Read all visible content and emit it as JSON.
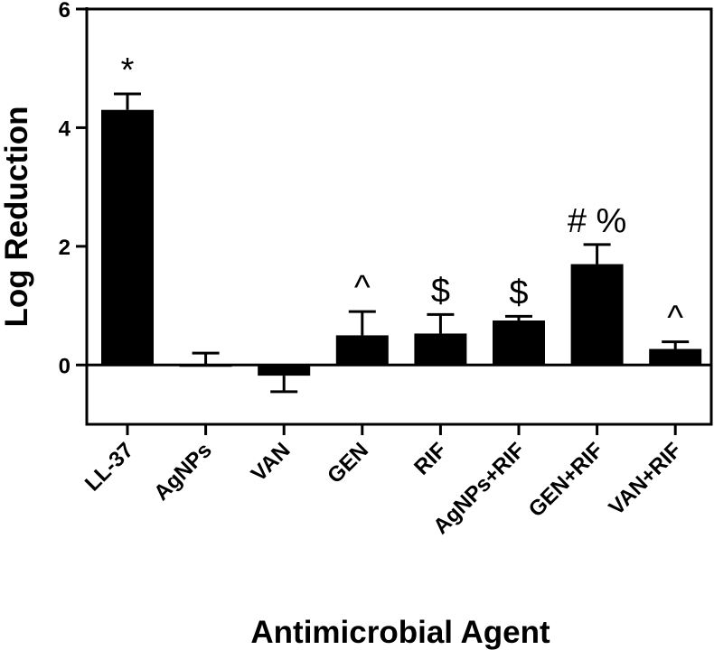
{
  "chart_data": {
    "type": "bar",
    "categories": [
      "LL-37",
      "AgNPs",
      "VAN",
      "GEN",
      "RIF",
      "AgNPs+RIF",
      "GEN+RIF",
      "VAN+RIF"
    ],
    "values": [
      4.3,
      0.0,
      -0.18,
      0.5,
      0.53,
      0.75,
      1.7,
      0.27
    ],
    "errors": [
      0.27,
      0.2,
      0.27,
      0.4,
      0.32,
      0.07,
      0.33,
      0.12
    ],
    "annotations": [
      "*",
      "",
      "",
      "^",
      "$",
      "$",
      "# %",
      "^"
    ],
    "xlabel": "Antimicrobial Agent",
    "ylabel": "Log Reduction",
    "ylim": [
      -1,
      6
    ],
    "yticks": [
      0,
      2,
      4,
      6
    ],
    "bar_color": "#000000",
    "grid": false
  }
}
